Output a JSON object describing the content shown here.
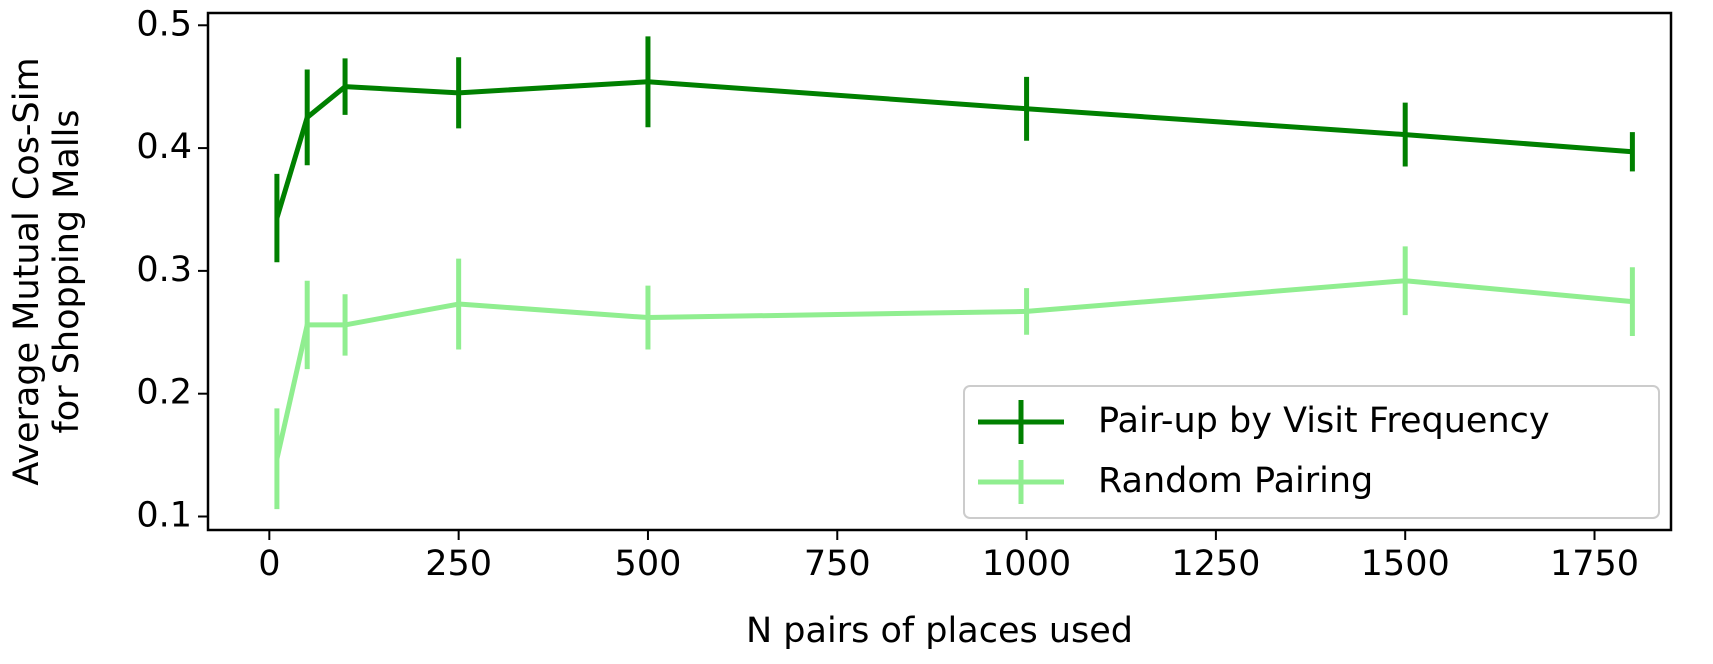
{
  "chart_data": {
    "type": "line",
    "xlabel": "N pairs of places used",
    "ylabel": [
      "Average Mutual Cos-Sim",
      "for Shopping Malls"
    ],
    "x": [
      10,
      50,
      100,
      250,
      500,
      1000,
      1500,
      1800
    ],
    "series": [
      {
        "name": "Pair-up by Visit Frequency",
        "color": "#008000",
        "values": [
          0.343,
          0.425,
          0.45,
          0.445,
          0.454,
          0.432,
          0.411,
          0.397
        ],
        "errors": [
          0.036,
          0.039,
          0.023,
          0.029,
          0.037,
          0.026,
          0.026,
          0.016
        ]
      },
      {
        "name": "Random Pairing",
        "color": "#90ee90",
        "values": [
          0.147,
          0.256,
          0.256,
          0.273,
          0.262,
          0.267,
          0.292,
          0.275
        ],
        "errors": [
          0.041,
          0.036,
          0.025,
          0.037,
          0.026,
          0.019,
          0.028,
          0.028
        ]
      }
    ],
    "xlim": [
      -81,
      1851
    ],
    "ylim": [
      0.089,
      0.51
    ],
    "xticks": [
      0,
      250,
      500,
      750,
      1000,
      1250,
      1500,
      1750
    ],
    "yticks": [
      0.1,
      0.2,
      0.3,
      0.4,
      0.5
    ],
    "legend": "lower right"
  }
}
